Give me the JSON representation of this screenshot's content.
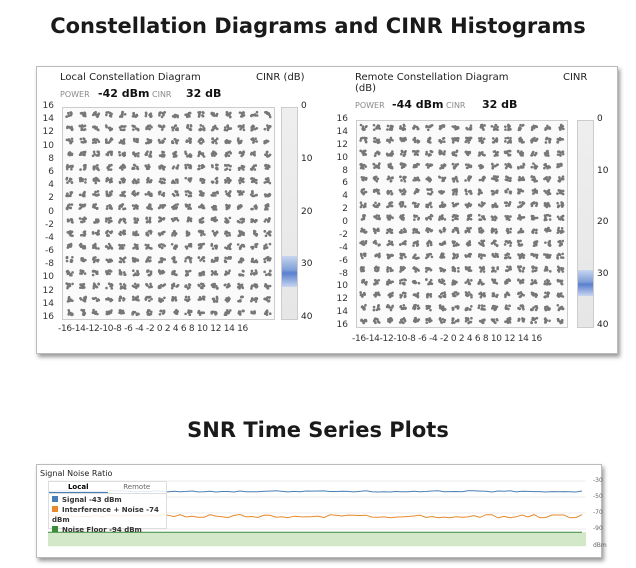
{
  "titles": {
    "top": "Constellation Diagrams and CINR Histograms",
    "bottom": "SNR Time Series Plots"
  },
  "local": {
    "title": "Local Constellation Diagram",
    "cinr_header": "CINR (dB)",
    "power_label": "POWER",
    "power": "-42 dBm",
    "cinr_label": "CINR",
    "cinr": "32 dB"
  },
  "remote": {
    "title": "Remote Constellation Diagram",
    "title2": "(dB)",
    "cinr_header": "CINR",
    "power_label": "POWER",
    "power": "-44 dBm",
    "cinr_label": "CINR",
    "cinr": "32 dB"
  },
  "chart_data": [
    {
      "type": "scatter",
      "title": "Local Constellation Diagram",
      "y_tick_labels": [
        "16",
        "14",
        "12",
        "10",
        "8",
        "6",
        "4",
        "2",
        "0",
        "-2",
        "-4",
        "-6",
        "-8",
        "10",
        "12",
        "14",
        "16"
      ],
      "x_tick_labels": "-16-14-12-10-8 -6 -4 -2 0 2 4 6 8 10 12 14 16",
      "grid_points": "16x16 symbol clusters at odd coordinates -15..15",
      "histogram": {
        "ticks": [
          "0",
          "10",
          "20",
          "30",
          "40"
        ],
        "peak_db": 32,
        "range_db": [
          28,
          34
        ]
      }
    },
    {
      "type": "scatter",
      "title": "Remote Constellation Diagram",
      "y_tick_labels": [
        "16",
        "14",
        "12",
        "10",
        "8",
        "6",
        "4",
        "2",
        "0",
        "-2",
        "-4",
        "-6",
        "-8",
        "10",
        "12",
        "14",
        "16"
      ],
      "x_tick_labels": "-16-14-12-10-8 -6 -4 -2 0 2 4 6 8 10 12 14 16",
      "grid_points": "16x16 symbol clusters at odd coordinates -15..15",
      "histogram": {
        "ticks": [
          "0",
          "10",
          "20",
          "30",
          "40"
        ],
        "peak_db": 32,
        "range_db": [
          29,
          34
        ]
      }
    },
    {
      "type": "line",
      "title": "Signal Noise Ratio",
      "tabs": [
        "Local",
        "Remote"
      ],
      "active_tab": "Local",
      "ylabel": "dBm",
      "y_ticks": [
        "-30",
        "-50",
        "-70",
        "-90"
      ],
      "ylim": [
        -100,
        -30
      ],
      "series": [
        {
          "name": "Signal -43 dBm",
          "color": "#4a7fb5",
          "level": -43
        },
        {
          "name": "Interference + Noise -74 dBm",
          "color": "#e8892b",
          "level": -74
        },
        {
          "name": "Noise Floor -94 dBm",
          "color": "#3c8a3c",
          "level": -94
        }
      ]
    }
  ]
}
